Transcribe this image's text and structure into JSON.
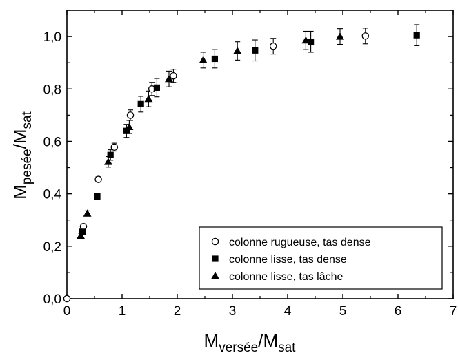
{
  "chart_data": {
    "type": "scatter",
    "title": "",
    "xlabel": {
      "main": "M",
      "sub1": "versée",
      "sep": "/M",
      "sub2": "sat"
    },
    "ylabel": {
      "main": "M",
      "sub1": "pesée",
      "sep": "/M",
      "sub2": "sat"
    },
    "xlim": [
      0,
      7
    ],
    "ylim": [
      0,
      1.1
    ],
    "x_ticks": [
      0,
      1,
      2,
      3,
      4,
      5,
      6,
      7
    ],
    "x_tick_labels": [
      "0",
      "1",
      "2",
      "3",
      "4",
      "5",
      "6",
      "7"
    ],
    "y_ticks": [
      0.0,
      0.2,
      0.4,
      0.6,
      0.8,
      1.0
    ],
    "y_tick_labels": [
      "0,0",
      "0,2",
      "0,4",
      "0,6",
      "0,8",
      "1,0"
    ],
    "grid": false,
    "legend_position": "bottom-right",
    "series": [
      {
        "name": "colonne rugueuse, tas dense",
        "marker": "open-circle",
        "points": [
          {
            "x": 0.0,
            "y": 0.0,
            "err": 0
          },
          {
            "x": 0.3,
            "y": 0.275,
            "err": 0.01
          },
          {
            "x": 0.57,
            "y": 0.455,
            "err": 0.01
          },
          {
            "x": 0.86,
            "y": 0.578,
            "err": 0.015
          },
          {
            "x": 1.15,
            "y": 0.7,
            "err": 0.02
          },
          {
            "x": 1.54,
            "y": 0.8,
            "err": 0.025
          },
          {
            "x": 1.93,
            "y": 0.85,
            "err": 0.025
          },
          {
            "x": 3.74,
            "y": 0.963,
            "err": 0.03
          },
          {
            "x": 5.41,
            "y": 1.002,
            "err": 0.03
          }
        ]
      },
      {
        "name": "colonne lisse, tas dense",
        "marker": "filled-square",
        "points": [
          {
            "x": 0.28,
            "y": 0.255,
            "err": 0.01
          },
          {
            "x": 0.55,
            "y": 0.39,
            "err": 0.012
          },
          {
            "x": 0.79,
            "y": 0.548,
            "err": 0.02
          },
          {
            "x": 1.08,
            "y": 0.64,
            "err": 0.025
          },
          {
            "x": 1.34,
            "y": 0.742,
            "err": 0.03
          },
          {
            "x": 1.63,
            "y": 0.805,
            "err": 0.035
          },
          {
            "x": 2.68,
            "y": 0.915,
            "err": 0.035
          },
          {
            "x": 3.41,
            "y": 0.947,
            "err": 0.04
          },
          {
            "x": 4.42,
            "y": 0.98,
            "err": 0.04
          },
          {
            "x": 6.34,
            "y": 1.005,
            "err": 0.04
          }
        ]
      },
      {
        "name": "colonne lisse, tas lâche",
        "marker": "filled-triangle",
        "points": [
          {
            "x": 0.25,
            "y": 0.24,
            "err": 0.01
          },
          {
            "x": 0.37,
            "y": 0.325,
            "err": 0.01
          },
          {
            "x": 0.75,
            "y": 0.522,
            "err": 0.02
          },
          {
            "x": 1.13,
            "y": 0.655,
            "err": 0.025
          },
          {
            "x": 1.48,
            "y": 0.762,
            "err": 0.03
          },
          {
            "x": 1.85,
            "y": 0.838,
            "err": 0.03
          },
          {
            "x": 2.47,
            "y": 0.91,
            "err": 0.03
          },
          {
            "x": 3.09,
            "y": 0.945,
            "err": 0.035
          },
          {
            "x": 4.33,
            "y": 0.985,
            "err": 0.035
          },
          {
            "x": 4.95,
            "y": 1.0,
            "err": 0.03
          }
        ]
      }
    ]
  }
}
